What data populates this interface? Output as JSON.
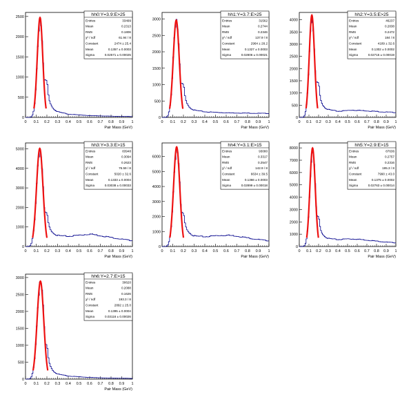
{
  "chart_data": [
    {
      "type": "histogram",
      "title": "hh0:Y=3.9:E>25",
      "xlabel": "Pair Mass (GeV)",
      "xlim": [
        0,
        1
      ],
      "ylim": [
        0,
        2600
      ],
      "yticks": [
        0,
        500,
        1000,
        1500,
        2000,
        2500
      ],
      "xticks": [
        "0",
        "0.1",
        "0.2",
        "0.3",
        "0.4",
        "0.5",
        "0.6",
        "0.7",
        "0.8",
        "0.9",
        "1"
      ],
      "stats": [
        {
          "label": "Entries",
          "value": "33499"
        },
        {
          "label": "Mean",
          "value": "0.2313"
        },
        {
          "label": "RMS",
          "value": "0.1806"
        },
        {
          "label": "χ² / ndf",
          "value": "61.94 / 8"
        },
        {
          "label": "Constant",
          "value": "2474 ± 25.4"
        },
        {
          "label": "Mean",
          "value": "0.1357 ± 0.0003"
        },
        {
          "label": "Sigma",
          "value": "0.02571 ± 0.00025"
        }
      ],
      "fit": {
        "constant": 2474,
        "mean": 0.1357,
        "sigma": 0.02571
      },
      "peak": 2450,
      "tail": [
        [
          0.2,
          900
        ],
        [
          0.22,
          420
        ],
        [
          0.26,
          220
        ],
        [
          0.3,
          140
        ],
        [
          0.4,
          80
        ],
        [
          0.6,
          45
        ],
        [
          0.8,
          30
        ],
        [
          1.0,
          22
        ]
      ]
    },
    {
      "type": "histogram",
      "title": "hh1:Y=3.7:E>25",
      "xlabel": "Pair Mass (GeV)",
      "xlim": [
        0,
        1
      ],
      "ylim": [
        0,
        3200
      ],
      "yticks": [
        0,
        500,
        1000,
        1500,
        2000,
        2500,
        3000
      ],
      "xticks": [
        "0",
        "0.1",
        "0.2",
        "0.3",
        "0.4",
        "0.5",
        "0.6",
        "0.7",
        "0.8",
        "0.9",
        "1"
      ],
      "stats": [
        {
          "label": "Entries",
          "value": "31562"
        },
        {
          "label": "Mean",
          "value": "0.2744"
        },
        {
          "label": "RMS",
          "value": "0.2346"
        },
        {
          "label": "χ² / ndf",
          "value": "137.9 / 8"
        },
        {
          "label": "Constant",
          "value": "2964 ± 28.2"
        },
        {
          "label": "Mean",
          "value": "0.1327 ± 0.0003"
        },
        {
          "label": "Sigma",
          "value": "0.02806 ± 0.00021"
        }
      ],
      "fit": {
        "constant": 2964,
        "mean": 0.1327,
        "sigma": 0.02806
      },
      "peak": 3000,
      "tail": [
        [
          0.2,
          1000
        ],
        [
          0.22,
          520
        ],
        [
          0.26,
          300
        ],
        [
          0.3,
          220
        ],
        [
          0.4,
          170
        ],
        [
          0.6,
          140
        ],
        [
          0.8,
          130
        ],
        [
          1.0,
          120
        ]
      ]
    },
    {
      "type": "histogram",
      "title": "hh2:Y=3.5:E>25",
      "xlabel": "Pair Mass (GeV)",
      "xlim": [
        0,
        1
      ],
      "ylim": [
        0,
        4300
      ],
      "yticks": [
        0,
        500,
        1000,
        1500,
        2000,
        2500,
        3000,
        3500,
        4000
      ],
      "xticks": [
        "0",
        "0.1",
        "0.2",
        "0.3",
        "0.4",
        "0.5",
        "0.6",
        "0.7",
        "0.8",
        "0.9",
        "1"
      ],
      "stats": [
        {
          "label": "Entries",
          "value": "46237"
        },
        {
          "label": "Mean",
          "value": "0.2838"
        },
        {
          "label": "RMS",
          "value": "0.2472"
        },
        {
          "label": "χ² / ndf",
          "value": "184 / 8"
        },
        {
          "label": "Constant",
          "value": "4189 ± 32.6"
        },
        {
          "label": "Mean",
          "value": "0.1302 ± 0.0002"
        },
        {
          "label": "Sigma",
          "value": "0.02715 ± 0.00019"
        }
      ],
      "fit": {
        "constant": 4189,
        "mean": 0.1302,
        "sigma": 0.02715
      },
      "peak": 4150,
      "tail": [
        [
          0.2,
          1400
        ],
        [
          0.22,
          700
        ],
        [
          0.26,
          420
        ],
        [
          0.3,
          320
        ],
        [
          0.4,
          250
        ],
        [
          0.55,
          300
        ],
        [
          0.7,
          270
        ],
        [
          0.85,
          230
        ],
        [
          1.0,
          200
        ]
      ]
    },
    {
      "type": "histogram",
      "title": "hh3:Y=3.3:E>15",
      "xlabel": "Pair Mass (GeV)",
      "xlim": [
        0,
        1
      ],
      "ylim": [
        0,
        5300
      ],
      "yticks": [
        0,
        1000,
        2000,
        3000,
        4000,
        5000
      ],
      "xticks": [
        "0",
        "0.1",
        "0.2",
        "0.3",
        "0.4",
        "0.5",
        "0.6",
        "0.7",
        "0.8",
        "0.9",
        "1"
      ],
      "stats": [
        {
          "label": "Entries",
          "value": "83948"
        },
        {
          "label": "Mean",
          "value": "0.3094"
        },
        {
          "label": "RMS",
          "value": "0.2623"
        },
        {
          "label": "χ² / ndf",
          "value": "76.59 / 8"
        },
        {
          "label": "Constant",
          "value": "5020 ± 32.6"
        },
        {
          "label": "Mean",
          "value": "0.1333 ± 0.0004"
        },
        {
          "label": "Sigma",
          "value": "0.03038 ± 0.00033"
        }
      ],
      "fit": {
        "constant": 5020,
        "mean": 0.1333,
        "sigma": 0.03038
      },
      "peak": 5000,
      "tail": [
        [
          0.2,
          1700
        ],
        [
          0.22,
          1000
        ],
        [
          0.26,
          700
        ],
        [
          0.3,
          560
        ],
        [
          0.4,
          520
        ],
        [
          0.5,
          580
        ],
        [
          0.6,
          640
        ],
        [
          0.7,
          560
        ],
        [
          0.85,
          420
        ],
        [
          1.0,
          300
        ]
      ]
    },
    {
      "type": "histogram",
      "title": "hh4:Y=3.1:E>15",
      "xlabel": "Pair Mass (GeV)",
      "xlim": [
        0,
        1
      ],
      "ylim": [
        0,
        6900
      ],
      "yticks": [
        0,
        1000,
        2000,
        3000,
        4000,
        5000,
        6000
      ],
      "xticks": [
        "0",
        "0.1",
        "0.2",
        "0.3",
        "0.4",
        "0.5",
        "0.6",
        "0.7",
        "0.8",
        "0.9",
        "1"
      ],
      "stats": [
        {
          "label": "Entries",
          "value": "93080"
        },
        {
          "label": "Mean",
          "value": "0.3317"
        },
        {
          "label": "RMS",
          "value": "0.2547"
        },
        {
          "label": "χ² / ndf",
          "value": "142.9 / 8"
        },
        {
          "label": "Constant",
          "value": "6634 ± 39.5"
        },
        {
          "label": "Mean",
          "value": "0.1366 ± 0.0003"
        },
        {
          "label": "Sigma",
          "value": "0.02899 ± 0.00018"
        }
      ],
      "fit": {
        "constant": 6634,
        "mean": 0.1366,
        "sigma": 0.02899
      },
      "peak": 6600,
      "tail": [
        [
          0.2,
          2200
        ],
        [
          0.22,
          1300
        ],
        [
          0.26,
          900
        ],
        [
          0.3,
          700
        ],
        [
          0.4,
          650
        ],
        [
          0.5,
          720
        ],
        [
          0.6,
          760
        ],
        [
          0.7,
          700
        ],
        [
          0.85,
          520
        ],
        [
          1.0,
          380
        ]
      ]
    },
    {
      "type": "histogram",
      "title": "hh5:Y=2.9:E>15",
      "xlabel": "Pair Mass (GeV)",
      "xlim": [
        0,
        1
      ],
      "ylim": [
        0,
        8400
      ],
      "yticks": [
        0,
        1000,
        2000,
        3000,
        4000,
        5000,
        6000,
        7000,
        8000
      ],
      "xticks": [
        "0",
        "0.1",
        "0.2",
        "0.3",
        "0.4",
        "0.5",
        "0.6",
        "0.7",
        "0.8",
        "0.9",
        "1"
      ],
      "stats": [
        {
          "label": "Entries",
          "value": "87636"
        },
        {
          "label": "Mean",
          "value": "0.2757"
        },
        {
          "label": "RMS",
          "value": "0.2316"
        },
        {
          "label": "χ² / ndf",
          "value": "195.3 / 8"
        },
        {
          "label": "Constant",
          "value": "7990 ± 43.0"
        },
        {
          "label": "Mean",
          "value": "0.1375 ± 0.0002"
        },
        {
          "label": "Sigma",
          "value": "0.02763 ± 0.00014"
        }
      ],
      "fit": {
        "constant": 7990,
        "mean": 0.1375,
        "sigma": 0.02763
      },
      "peak": 7950,
      "tail": [
        [
          0.2,
          2400
        ],
        [
          0.22,
          1300
        ],
        [
          0.26,
          850
        ],
        [
          0.3,
          650
        ],
        [
          0.4,
          560
        ],
        [
          0.5,
          620
        ],
        [
          0.6,
          600
        ],
        [
          0.75,
          480
        ],
        [
          0.9,
          360
        ],
        [
          1.0,
          300
        ]
      ]
    },
    {
      "type": "histogram",
      "title": "hh6:Y=2.7:E>15",
      "xlabel": "Pair Mass (GeV)",
      "xlim": [
        0,
        1
      ],
      "ylim": [
        0,
        3100
      ],
      "yticks": [
        0,
        500,
        1000,
        1500,
        2000,
        2500,
        3000
      ],
      "xticks": [
        "0",
        "0.1",
        "0.2",
        "0.3",
        "0.4",
        "0.5",
        "0.6",
        "0.7",
        "0.8",
        "0.9",
        "1"
      ],
      "stats": [
        {
          "label": "Entries",
          "value": "30620"
        },
        {
          "label": "Mean",
          "value": "0.2088"
        },
        {
          "label": "RMS",
          "value": "0.1626"
        },
        {
          "label": "χ² / ndf",
          "value": "193.3 / 8"
        },
        {
          "label": "Constant",
          "value": "2892 ± 25.0"
        },
        {
          "label": "Mean",
          "value": "0.1395 ± 0.0004"
        },
        {
          "label": "Sigma",
          "value": "0.03116 ± 0.00026"
        }
      ],
      "fit": {
        "constant": 2892,
        "mean": 0.1395,
        "sigma": 0.03116
      },
      "peak": 2900,
      "tail": [
        [
          0.2,
          1000
        ],
        [
          0.22,
          480
        ],
        [
          0.26,
          240
        ],
        [
          0.3,
          150
        ],
        [
          0.4,
          90
        ],
        [
          0.6,
          50
        ],
        [
          0.8,
          30
        ],
        [
          1.0,
          20
        ]
      ]
    }
  ]
}
